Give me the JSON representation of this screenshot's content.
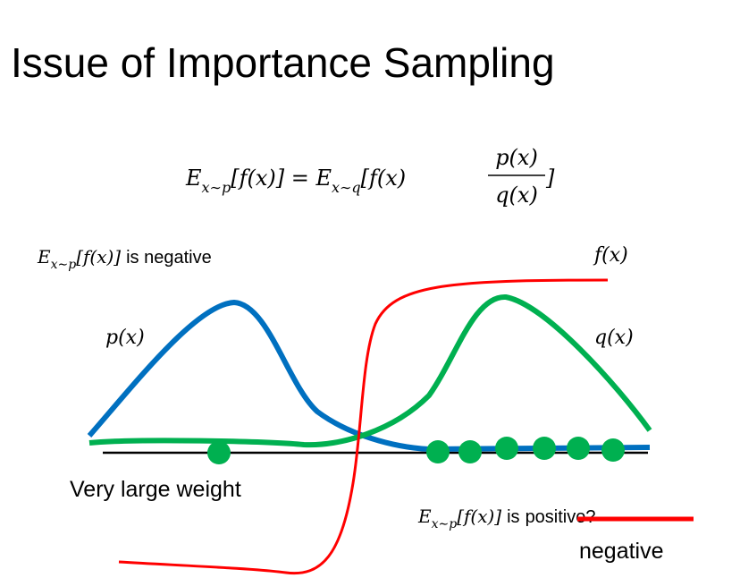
{
  "title": "Issue of Importance Sampling",
  "equation": {
    "left": "E",
    "left_sub": "x∼p",
    "middle": "[f(x)] = E",
    "right_sub": "x∼q",
    "right": "[f(x)",
    "numerator": "p(x)",
    "denominator": "q(x)",
    "close": "]"
  },
  "top_note": {
    "expr": "E",
    "sub": "x∼p",
    "rest": "[f(x)]",
    "text": "is negative"
  },
  "curve_labels": {
    "f": "f(x)",
    "p": "p(x)",
    "q": "q(x)"
  },
  "weight_note": "Very large weight",
  "bottom_note": {
    "expr": "E",
    "sub": "x∼p",
    "rest": "[f(x)]",
    "is": "is",
    "struck": "positive?",
    "correction": "negative"
  }
}
